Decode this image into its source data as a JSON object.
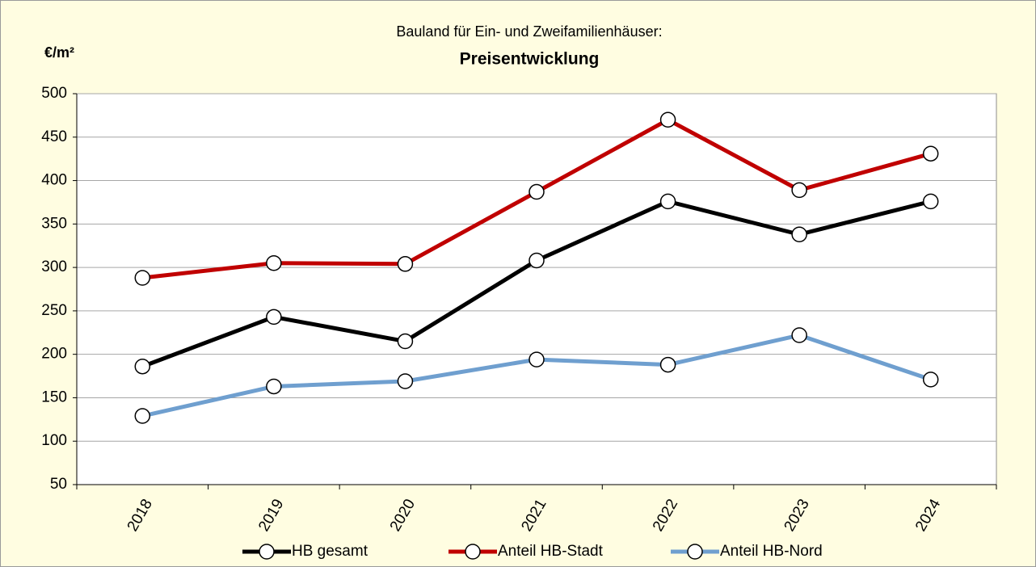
{
  "chart_data": {
    "type": "line",
    "subtitle": "Bauland für Ein- und Zweifamilienhäuser:",
    "title": "Preisentwicklung",
    "ylabel": "€/m²",
    "categories": [
      "2018",
      "2019",
      "2020",
      "2021",
      "2022",
      "2023",
      "2024"
    ],
    "series": [
      {
        "name": "HB gesamt",
        "color": "#000000",
        "values": [
          186,
          243,
          215,
          308,
          376,
          338,
          376
        ]
      },
      {
        "name": "Anteil HB-Stadt",
        "color": "#c00000",
        "values": [
          288,
          305,
          304,
          387,
          470,
          389,
          431
        ]
      },
      {
        "name": "Anteil HB-Nord",
        "color": "#6f9fcf",
        "values": [
          129,
          163,
          169,
          194,
          188,
          222,
          171
        ]
      }
    ],
    "ylim": [
      50,
      500
    ],
    "yticks": [
      50,
      100,
      150,
      200,
      250,
      300,
      350,
      400,
      450,
      500
    ],
    "grid": true,
    "legend": "bottom"
  }
}
